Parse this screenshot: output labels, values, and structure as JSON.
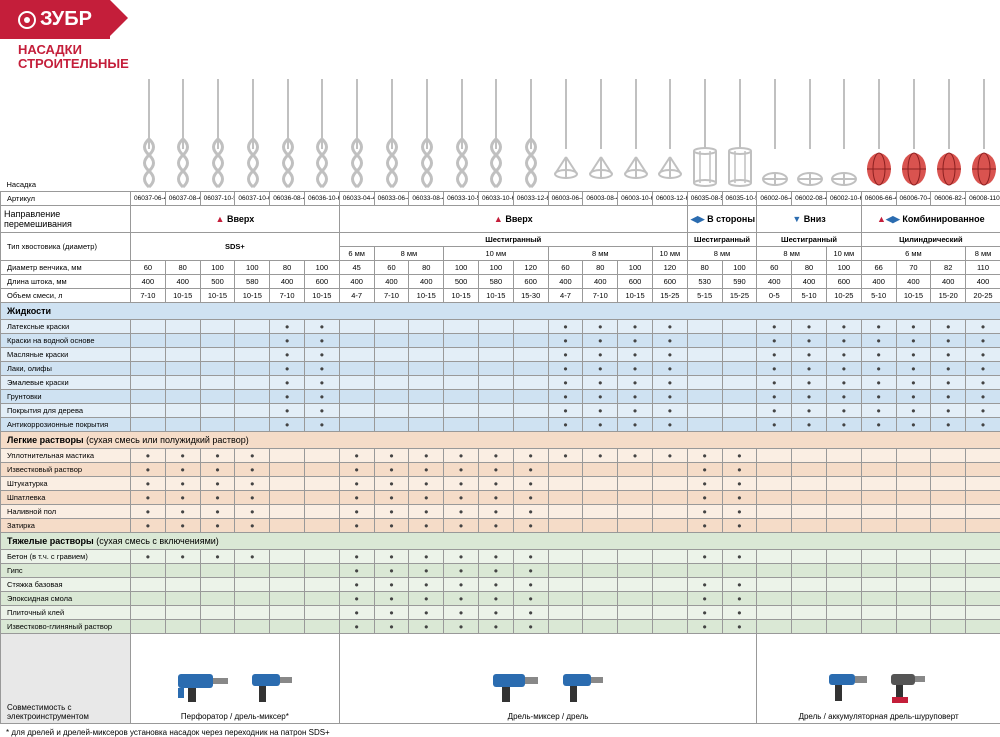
{
  "brand": "ЗУБР",
  "title1": "НАСАДКИ",
  "title2": "СТРОИТЕЛЬНЫЕ",
  "labels": {
    "nasadka": "Насадка",
    "artikul": "Артикул",
    "direction": "Направление перемешивания",
    "shank": "Тип хвостовика (диаметр)",
    "diam": "Диаметр венчика, мм",
    "len": "Длина штока, мм",
    "vol": "Объем смеси, л",
    "liq": "Жидкости",
    "light": "Легкие растворы",
    "light_sub": " (сухая смесь или полужидкий раствор)",
    "heavy": "Тяжелые растворы",
    "heavy_sub": " (сухая смесь с включениями)",
    "compat": "Совместимость с электроинструментом",
    "note": "* для дрелей и дрелей-миксеров установка насадок через переходник на патрон SDS+",
    "up": "Вверх",
    "side": "В стороны",
    "down": "Вниз",
    "combo": "Комбинированное",
    "sds": "SDS+",
    "hex": "Шестигранный",
    "cyl": "Цилиндрический",
    "tool1": "Перфоратор / дрель-миксер*",
    "tool2": "Дрель-миксер / дрель",
    "tool3": "Дрель / аккумуляторная дрель-шуруповерт"
  },
  "colors": {
    "red": "#c41e3a",
    "blue": "#2b6cb0",
    "paddle": "#c0c0c0",
    "redPaddle": "#d9534f"
  },
  "articles": [
    "06037-06-40",
    "06037-08-40",
    "06037-10-50",
    "06037-10-60",
    "06036-08-40",
    "06036-10-60",
    "06033-04-40",
    "06033-06-40",
    "06033-08-40",
    "06033-10-50",
    "06033-10-60",
    "06033-12-60",
    "06003-06-40",
    "06003-08-40",
    "06003-10-60",
    "06003-12-60",
    "06035-08-53",
    "06035-10-59",
    "06002-06-40",
    "06002-08-40",
    "06002-10-60",
    "06006-66-40",
    "06006-70-40",
    "06006-82-40",
    "06008-110-40"
  ],
  "shank_sub": [
    "",
    "",
    "",
    "",
    "",
    "",
    "",
    "6 мм",
    "",
    "8 мм",
    "",
    "10 мм",
    "",
    "",
    "8 мм",
    "",
    "10 мм",
    "8 мм",
    "",
    "8 мм",
    "",
    "10 мм",
    "",
    "6 мм",
    "",
    "8 мм"
  ],
  "diam": [
    "60",
    "80",
    "100",
    "100",
    "80",
    "100",
    "45",
    "60",
    "80",
    "100",
    "100",
    "120",
    "60",
    "80",
    "100",
    "120",
    "80",
    "100",
    "60",
    "80",
    "100",
    "66",
    "70",
    "82",
    "110"
  ],
  "len": [
    "400",
    "400",
    "500",
    "580",
    "400",
    "600",
    "400",
    "400",
    "400",
    "500",
    "580",
    "600",
    "400",
    "400",
    "600",
    "600",
    "530",
    "590",
    "400",
    "400",
    "600",
    "400",
    "400",
    "400",
    "400"
  ],
  "vol": [
    "7-10",
    "10-15",
    "10-15",
    "10-15",
    "7-10",
    "10-15",
    "4-7",
    "7-10",
    "10-15",
    "10-15",
    "10-15",
    "15-30",
    "4-7",
    "7-10",
    "10-15",
    "15-25",
    "5-15",
    "15-25",
    "0-5",
    "5-10",
    "10-25",
    "5-10",
    "10-15",
    "15-20",
    "20-25"
  ],
  "liq_rows": [
    {
      "n": "Латексные краски",
      "d": [
        0,
        0,
        0,
        0,
        1,
        1,
        0,
        0,
        0,
        0,
        0,
        0,
        1,
        1,
        1,
        1,
        0,
        0,
        1,
        1,
        1,
        1,
        1,
        1,
        1
      ]
    },
    {
      "n": "Краски на водной основе",
      "d": [
        0,
        0,
        0,
        0,
        1,
        1,
        0,
        0,
        0,
        0,
        0,
        0,
        1,
        1,
        1,
        1,
        0,
        0,
        1,
        1,
        1,
        1,
        1,
        1,
        1
      ]
    },
    {
      "n": "Масляные краски",
      "d": [
        0,
        0,
        0,
        0,
        1,
        1,
        0,
        0,
        0,
        0,
        0,
        0,
        1,
        1,
        1,
        1,
        0,
        0,
        1,
        1,
        1,
        1,
        1,
        1,
        1
      ]
    },
    {
      "n": "Лаки, олифы",
      "d": [
        0,
        0,
        0,
        0,
        1,
        1,
        0,
        0,
        0,
        0,
        0,
        0,
        1,
        1,
        1,
        1,
        0,
        0,
        1,
        1,
        1,
        1,
        1,
        1,
        1
      ]
    },
    {
      "n": "Эмалевые краски",
      "d": [
        0,
        0,
        0,
        0,
        1,
        1,
        0,
        0,
        0,
        0,
        0,
        0,
        1,
        1,
        1,
        1,
        0,
        0,
        1,
        1,
        1,
        1,
        1,
        1,
        1
      ]
    },
    {
      "n": "Грунтовки",
      "d": [
        0,
        0,
        0,
        0,
        1,
        1,
        0,
        0,
        0,
        0,
        0,
        0,
        1,
        1,
        1,
        1,
        0,
        0,
        1,
        1,
        1,
        1,
        1,
        1,
        1
      ]
    },
    {
      "n": "Покрытия для дерева",
      "d": [
        0,
        0,
        0,
        0,
        1,
        1,
        0,
        0,
        0,
        0,
        0,
        0,
        1,
        1,
        1,
        1,
        0,
        0,
        1,
        1,
        1,
        1,
        1,
        1,
        1
      ]
    },
    {
      "n": "Антикоррозионные покрытия",
      "d": [
        0,
        0,
        0,
        0,
        1,
        1,
        0,
        0,
        0,
        0,
        0,
        0,
        1,
        1,
        1,
        1,
        0,
        0,
        1,
        1,
        1,
        1,
        1,
        1,
        1
      ]
    }
  ],
  "light_rows": [
    {
      "n": "Уплотнительная мастика",
      "d": [
        1,
        1,
        1,
        1,
        0,
        0,
        1,
        1,
        1,
        1,
        1,
        1,
        1,
        1,
        1,
        1,
        1,
        1,
        0,
        0,
        0,
        0,
        0,
        0,
        0
      ]
    },
    {
      "n": "Известковый раствор",
      "d": [
        1,
        1,
        1,
        1,
        0,
        0,
        1,
        1,
        1,
        1,
        1,
        1,
        0,
        0,
        0,
        0,
        1,
        1,
        0,
        0,
        0,
        0,
        0,
        0,
        0
      ]
    },
    {
      "n": "Штукатурка",
      "d": [
        1,
        1,
        1,
        1,
        0,
        0,
        1,
        1,
        1,
        1,
        1,
        1,
        0,
        0,
        0,
        0,
        1,
        1,
        0,
        0,
        0,
        0,
        0,
        0,
        0
      ]
    },
    {
      "n": "Шпатлевка",
      "d": [
        1,
        1,
        1,
        1,
        0,
        0,
        1,
        1,
        1,
        1,
        1,
        1,
        0,
        0,
        0,
        0,
        1,
        1,
        0,
        0,
        0,
        0,
        0,
        0,
        0
      ]
    },
    {
      "n": "Наливной пол",
      "d": [
        1,
        1,
        1,
        1,
        0,
        0,
        1,
        1,
        1,
        1,
        1,
        1,
        0,
        0,
        0,
        0,
        1,
        1,
        0,
        0,
        0,
        0,
        0,
        0,
        0
      ]
    },
    {
      "n": "Затирка",
      "d": [
        1,
        1,
        1,
        1,
        0,
        0,
        1,
        1,
        1,
        1,
        1,
        1,
        0,
        0,
        0,
        0,
        1,
        1,
        0,
        0,
        0,
        0,
        0,
        0,
        0
      ]
    }
  ],
  "heavy_rows": [
    {
      "n": "Бетон (в т.ч. с гравием)",
      "d": [
        1,
        1,
        1,
        1,
        0,
        0,
        1,
        1,
        1,
        1,
        1,
        1,
        0,
        0,
        0,
        0,
        1,
        1,
        0,
        0,
        0,
        0,
        0,
        0,
        0
      ]
    },
    {
      "n": "Гипс",
      "d": [
        0,
        0,
        0,
        0,
        0,
        0,
        1,
        1,
        1,
        1,
        1,
        1,
        0,
        0,
        0,
        0,
        0,
        0,
        0,
        0,
        0,
        0,
        0,
        0,
        0
      ]
    },
    {
      "n": "Стяжка базовая",
      "d": [
        0,
        0,
        0,
        0,
        0,
        0,
        1,
        1,
        1,
        1,
        1,
        1,
        0,
        0,
        0,
        0,
        1,
        1,
        0,
        0,
        0,
        0,
        0,
        0,
        0
      ]
    },
    {
      "n": "Эпоксидная смола",
      "d": [
        0,
        0,
        0,
        0,
        0,
        0,
        1,
        1,
        1,
        1,
        1,
        1,
        0,
        0,
        0,
        0,
        1,
        1,
        0,
        0,
        0,
        0,
        0,
        0,
        0
      ]
    },
    {
      "n": "Плиточный клей",
      "d": [
        0,
        0,
        0,
        0,
        0,
        0,
        1,
        1,
        1,
        1,
        1,
        1,
        0,
        0,
        0,
        0,
        1,
        1,
        0,
        0,
        0,
        0,
        0,
        0,
        0
      ]
    },
    {
      "n": "Известково-глиняный раствор",
      "d": [
        0,
        0,
        0,
        0,
        0,
        0,
        1,
        1,
        1,
        1,
        1,
        1,
        0,
        0,
        0,
        0,
        1,
        1,
        0,
        0,
        0,
        0,
        0,
        0,
        0
      ]
    }
  ],
  "paddle_types": [
    "spiral",
    "spiral",
    "spiral",
    "spiral",
    "spiral",
    "spiral",
    "spiral",
    "spiral",
    "spiral",
    "spiral",
    "spiral",
    "spiral",
    "prop",
    "prop",
    "prop",
    "prop",
    "cage",
    "cage",
    "flat",
    "flat",
    "flat",
    "redcage",
    "redcage",
    "redcage",
    "redcage"
  ]
}
